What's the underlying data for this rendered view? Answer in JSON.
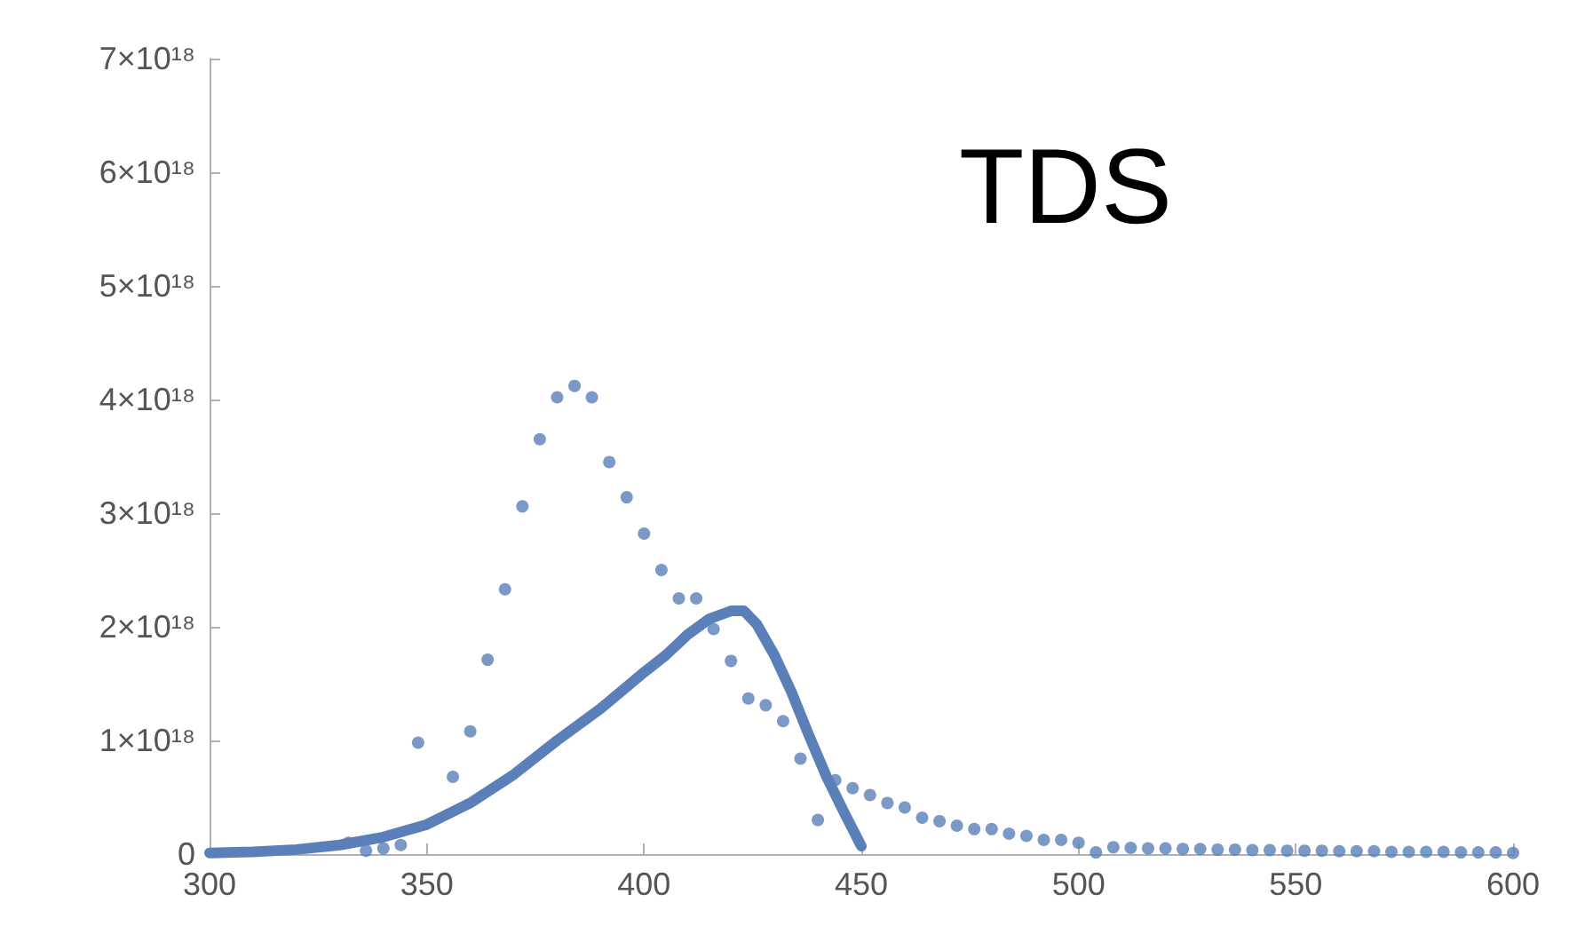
{
  "chart_data": {
    "type": "scatter",
    "title": "TDS",
    "xlim": [
      300,
      600
    ],
    "xticks": [
      300,
      350,
      400,
      450,
      500,
      550,
      600
    ],
    "ylim": [
      0,
      7e+18
    ],
    "yticks": [
      0,
      {
        "value": 1e+18,
        "label": "1×10¹⁸"
      },
      {
        "value": 2e+18,
        "label": "2×10¹⁸"
      },
      {
        "value": 3e+18,
        "label": "3×10¹⁸"
      },
      {
        "value": 4e+18,
        "label": "4×10¹⁸"
      },
      {
        "value": 5e+18,
        "label": "5×10¹⁸"
      },
      {
        "value": 6e+18,
        "label": "6×10¹⁸"
      },
      {
        "value": 7e+18,
        "label": "7×10¹⁸"
      }
    ],
    "grid": false,
    "marker": "circle",
    "series": [
      {
        "color": "#5a7fb9",
        "x": [
          332,
          336,
          340,
          344,
          348,
          356,
          360,
          364,
          368,
          372,
          376,
          380,
          384,
          388,
          392,
          396,
          400,
          404,
          408,
          412,
          416,
          420,
          424,
          428,
          432,
          436,
          440,
          444,
          448,
          452,
          456,
          460,
          464,
          468,
          472,
          476,
          480,
          484,
          488,
          492,
          496,
          500,
          504,
          508,
          512,
          516,
          520,
          524,
          528,
          532,
          536,
          540,
          544,
          548,
          552,
          556,
          560,
          564,
          568,
          572,
          576,
          580,
          584,
          588,
          592,
          596,
          600
        ],
        "values": [
          1e+17,
          3e+16,
          5e+16,
          8e+16,
          9.8e+17,
          6.8e+17,
          1.08e+18,
          1.71e+18,
          2.33e+18,
          3.06e+18,
          3.65e+18,
          4.02e+18,
          4.12e+18,
          4.02e+18,
          3.45e+18,
          3.14e+18,
          2.82e+18,
          2.5e+18,
          2.25e+18,
          2.25e+18,
          1.98e+18,
          1.7e+18,
          1.37e+18,
          1.31e+18,
          1.17e+18,
          8.4e+17,
          3e+17,
          6.5e+17,
          5.8e+17,
          5.2e+17,
          4.5e+17,
          4.1e+17,
          3.2e+17,
          2.9e+17,
          2.5e+17,
          2.2e+17,
          2.2e+17,
          1.8e+17,
          1.6e+17,
          1.25e+17,
          1.25e+17,
          1e+17,
          1.5e+16,
          6e+16,
          5.5e+16,
          5e+16,
          5e+16,
          4.5e+16,
          4.5e+16,
          4e+16,
          4e+16,
          3.5e+16,
          3.5e+16,
          3e+16,
          3e+16,
          3e+16,
          2.5e+16,
          2.5e+16,
          2.5e+16,
          2e+16,
          2e+16,
          2e+16,
          2e+16,
          1.5e+16,
          1.5e+16,
          1.5e+16,
          1e+16
        ]
      },
      {
        "type": "line",
        "color": "#5a7fb9",
        "marker": "none",
        "line_style": "solid",
        "x": [
          300,
          310,
          320,
          330,
          340,
          350,
          360,
          370,
          380,
          390,
          400,
          405,
          410,
          415,
          420,
          423,
          426,
          430,
          434,
          438,
          442,
          446,
          450
        ],
        "values": [
          1e+16,
          2e+16,
          4e+16,
          8e+16,
          1.5e+17,
          2.6e+17,
          4.5e+17,
          7e+17,
          1e+18,
          1.28e+18,
          1.6e+18,
          1.75e+18,
          1.93e+18,
          2.07e+18,
          2.14e+18,
          2.14e+18,
          2.02e+18,
          1.75e+18,
          1.42e+18,
          1.04e+18,
          6.8e+17,
          3.7e+17,
          7e+16
        ]
      }
    ]
  }
}
